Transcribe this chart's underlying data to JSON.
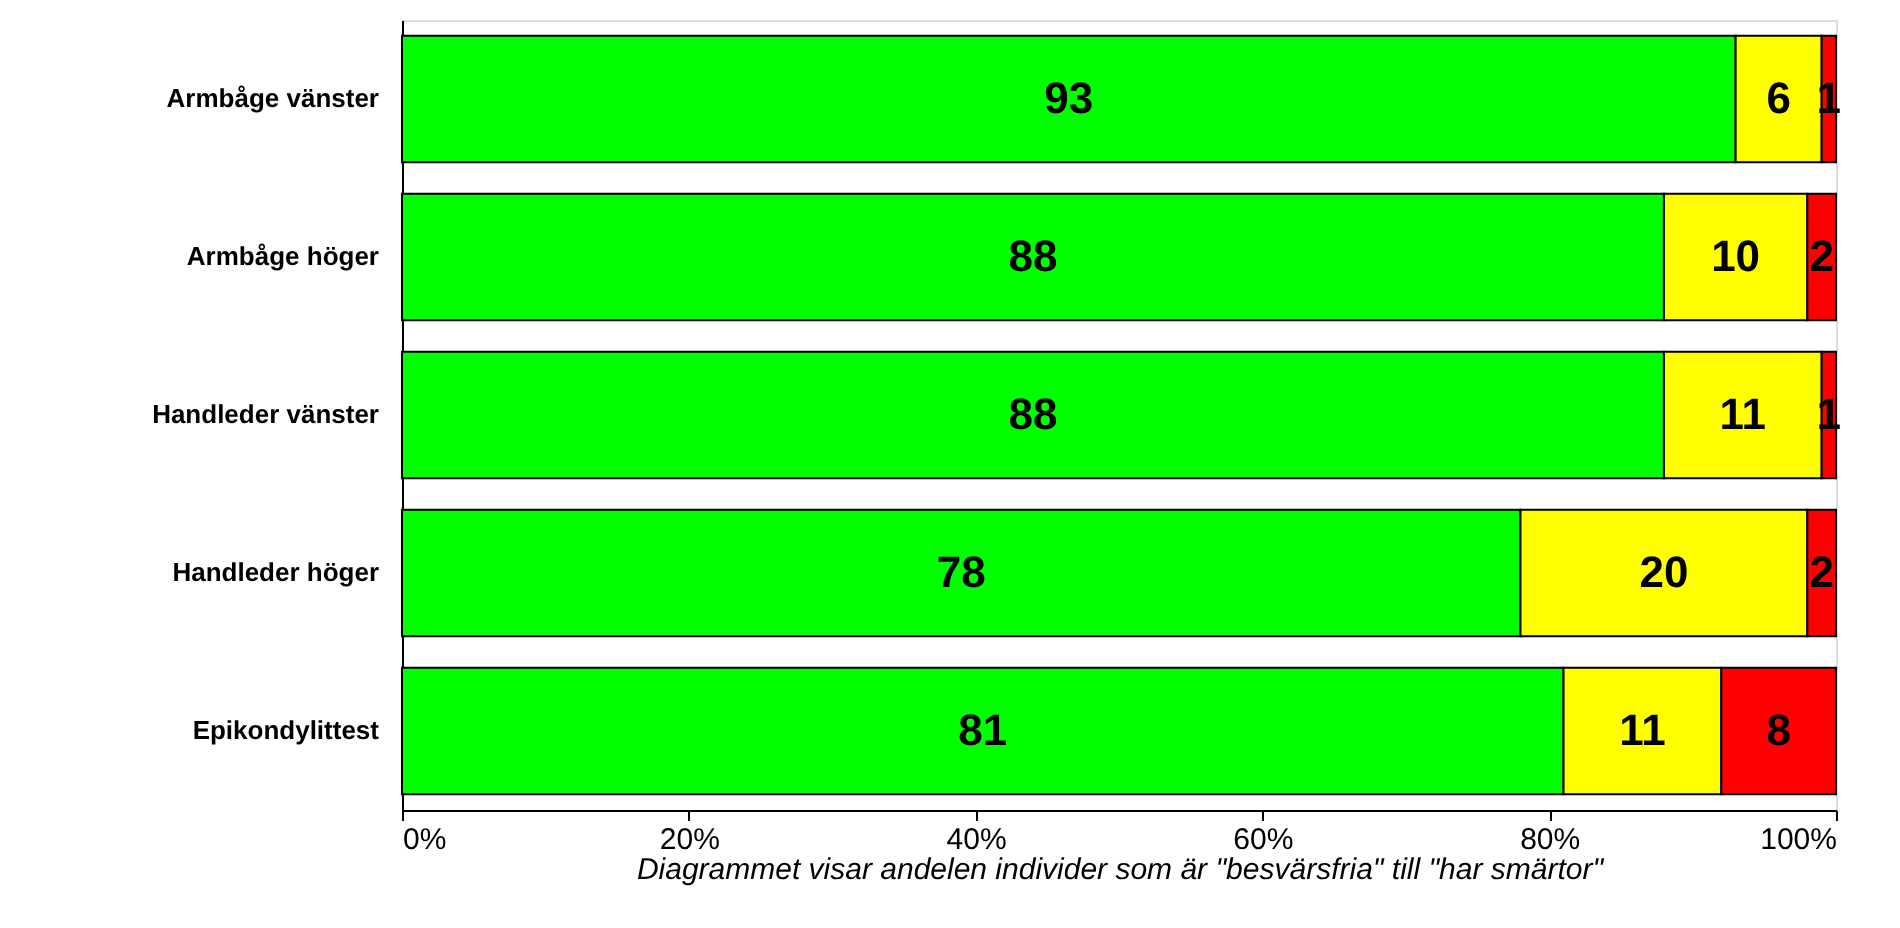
{
  "chart_data": {
    "type": "bar",
    "orientation": "horizontal",
    "stacked": true,
    "data_labels": true,
    "categories": [
      "Armbåge vänster",
      "Armbåge höger",
      "Handleder vänster",
      "Handleder höger",
      "Epikondylittest"
    ],
    "series": [
      {
        "color": "#00ff00",
        "values": [
          93,
          88,
          88,
          78,
          81
        ]
      },
      {
        "color": "#ffff00",
        "values": [
          6,
          10,
          11,
          20,
          11
        ]
      },
      {
        "color": "#ff0000",
        "values": [
          1,
          2,
          1,
          2,
          8
        ]
      }
    ],
    "xlim": [
      0,
      100
    ],
    "xticks": [
      {
        "value": 0,
        "label": "0%"
      },
      {
        "value": 20,
        "label": "20%"
      },
      {
        "value": 40,
        "label": "40%"
      },
      {
        "value": 60,
        "label": "60%"
      },
      {
        "value": 80,
        "label": "80%"
      },
      {
        "value": 100,
        "label": "100%"
      }
    ],
    "xlabel": "Diagrammet visar andelen individer som är \"besvärsfria\" till \"har smärtor\"",
    "grid": false
  }
}
